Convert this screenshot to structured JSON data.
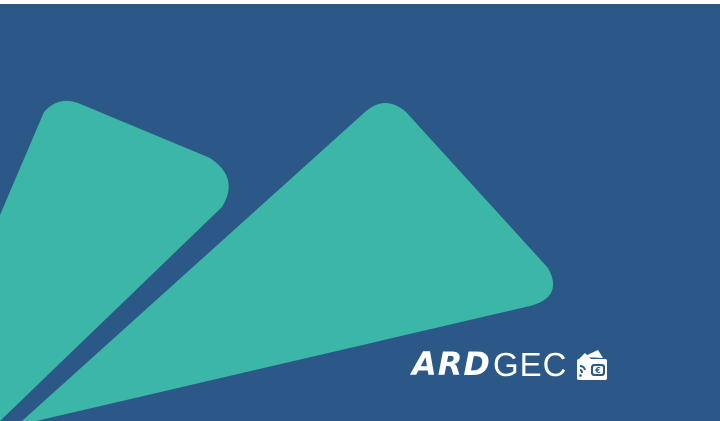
{
  "colors": {
    "background": "#2b5887",
    "top_band": "#ffffff",
    "shape": "#3cb6a7",
    "logo": "#ffffff"
  },
  "decor": {
    "left_shape": "rounded-triangle",
    "right_shape": "rounded-triangle"
  },
  "logo": {
    "part_bold": "ARD",
    "part_light": "GEC",
    "icon": "wallet-euro-icon"
  }
}
